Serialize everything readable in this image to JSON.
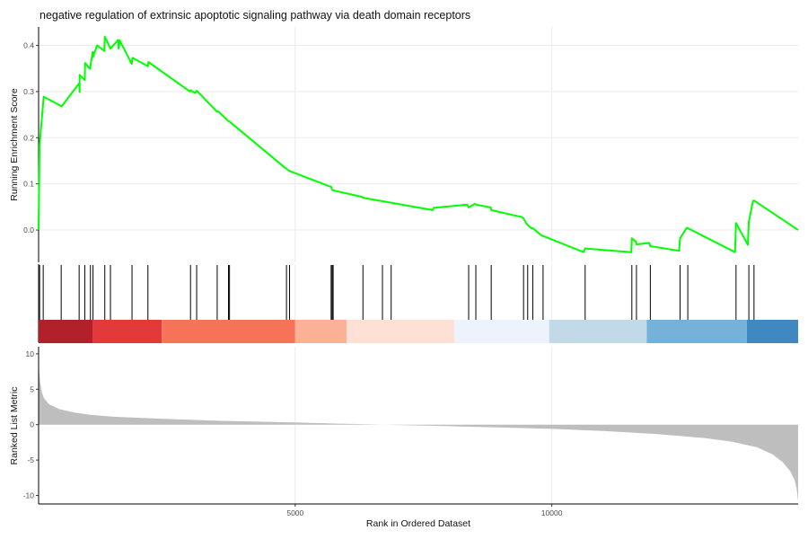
{
  "chart_data": {
    "type": "line",
    "title": "negative regulation of extrinsic apoptotic signaling pathway via death domain receptors",
    "xlabel": "Rank in Ordered Dataset",
    "x_ticks": [
      5000,
      10000
    ],
    "xlim": [
      0,
      14800
    ],
    "grid": true,
    "panels": {
      "running_score": {
        "ylabel": "Running Enrichment Score",
        "ylim": [
          -0.07,
          0.44
        ],
        "y_ticks": [
          0.0,
          0.1,
          0.2,
          0.3,
          0.4
        ],
        "line_color": "#00ff00",
        "x": [
          0,
          20,
          100,
          450,
          790,
          800,
          800,
          900,
          905,
          1000,
          1055,
          1060,
          1140,
          1280,
          1290,
          1400,
          1550,
          1560,
          1580,
          1815,
          1830,
          2130,
          2140,
          2950,
          2960,
          3050,
          3080,
          3480,
          3500,
          3700,
          3720,
          4800,
          4830,
          4860,
          4890,
          5680,
          5700,
          5720,
          5740,
          6300,
          6320,
          7680,
          7700,
          8350,
          8380,
          8500,
          8520,
          8810,
          8820,
          9420,
          9450,
          9500,
          9530,
          9600,
          9630,
          9800,
          9830,
          10620,
          10650,
          11550,
          11560,
          11640,
          11650,
          11900,
          11920,
          12480,
          12500,
          12630,
          12650,
          13570,
          13590,
          13820,
          13840,
          13920,
          13940,
          14800
        ],
        "y": [
          0.0,
          0.184,
          0.289,
          0.268,
          0.318,
          0.299,
          0.336,
          0.325,
          0.362,
          0.349,
          0.386,
          0.375,
          0.4,
          0.388,
          0.419,
          0.393,
          0.412,
          0.393,
          0.411,
          0.36,
          0.373,
          0.355,
          0.364,
          0.3,
          0.303,
          0.297,
          0.302,
          0.256,
          0.257,
          0.236,
          0.235,
          0.135,
          0.133,
          0.13,
          0.128,
          0.094,
          0.094,
          0.087,
          0.086,
          0.072,
          0.07,
          0.043,
          0.048,
          0.055,
          0.049,
          0.057,
          0.055,
          0.049,
          0.043,
          0.028,
          0.025,
          0.015,
          0.011,
          0.004,
          0.004,
          -0.012,
          -0.013,
          -0.048,
          -0.04,
          -0.048,
          -0.018,
          -0.025,
          -0.031,
          -0.028,
          -0.035,
          -0.045,
          -0.018,
          0.005,
          0.004,
          -0.048,
          0.015,
          -0.032,
          0.018,
          0.063,
          0.064,
          0.0
        ]
      },
      "hits": {
        "positions": [
          20,
          90,
          440,
          790,
          900,
          1010,
          1060,
          1290,
          1400,
          1820,
          2130,
          2960,
          3080,
          3480,
          3700,
          3720,
          4830,
          4890,
          5700,
          5720,
          5740,
          6320,
          6700,
          6870,
          8380,
          8520,
          8820,
          9450,
          9530,
          9630,
          9830,
          10650,
          11560,
          11650,
          11920,
          12500,
          12650,
          13590,
          13840,
          13940
        ]
      },
      "color_bar": {
        "segments": [
          {
            "from": 0,
            "to": 1050,
            "color": "#b2202a"
          },
          {
            "from": 1050,
            "to": 2400,
            "color": "#e2393b"
          },
          {
            "from": 2400,
            "to": 5000,
            "color": "#f6735a"
          },
          {
            "from": 5000,
            "to": 6000,
            "color": "#fcb197"
          },
          {
            "from": 6000,
            "to": 8100,
            "color": "#fee1d4"
          },
          {
            "from": 8100,
            "to": 9950,
            "color": "#edf3fd"
          },
          {
            "from": 9950,
            "to": 11850,
            "color": "#c2d9e8"
          },
          {
            "from": 11850,
            "to": 13800,
            "color": "#76b2d8"
          },
          {
            "from": 13800,
            "to": 14800,
            "color": "#3f88c1"
          }
        ]
      },
      "ranked_metric": {
        "ylabel": "Ranked List Metric",
        "ylim": [
          -11.2,
          11.0
        ],
        "y_ticks": [
          10,
          5,
          0,
          -5,
          -10
        ],
        "fill_color": "#bebebe",
        "x": [
          0,
          10,
          30,
          60,
          100,
          200,
          400,
          700,
          1000,
          1500,
          2500,
          3500,
          5000,
          6000,
          7000,
          8000,
          9000,
          10000,
          11000,
          12000,
          13000,
          13500,
          14000,
          14300,
          14500,
          14650,
          14730,
          14770,
          14790,
          14800
        ],
        "values": [
          10.8,
          7.5,
          6.0,
          4.7,
          3.8,
          2.9,
          2.2,
          1.7,
          1.4,
          1.1,
          0.8,
          0.55,
          0.3,
          0.12,
          -0.05,
          -0.22,
          -0.4,
          -0.6,
          -0.9,
          -1.3,
          -1.9,
          -2.4,
          -3.2,
          -4.2,
          -5.3,
          -6.6,
          -7.8,
          -9.0,
          -10.2,
          -10.8
        ]
      }
    }
  }
}
